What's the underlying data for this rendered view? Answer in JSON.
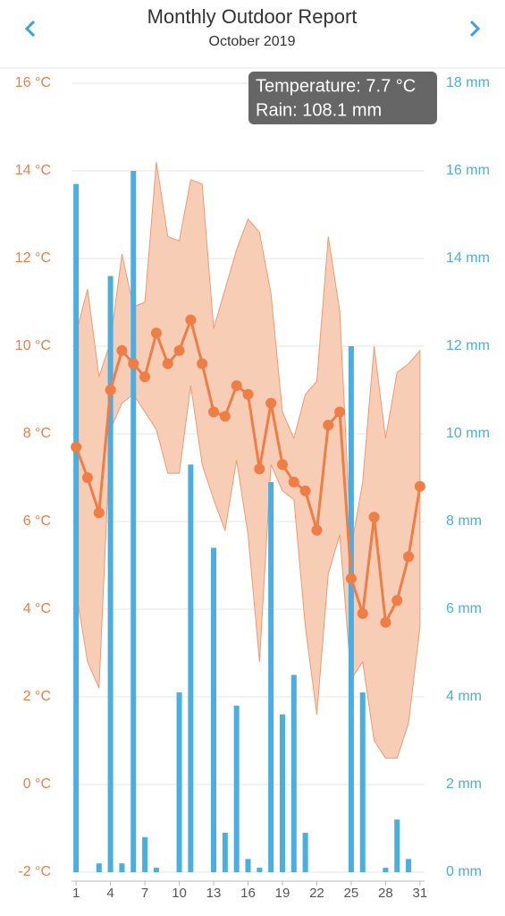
{
  "chart_data": {
    "type": "combo",
    "title": "Monthly Outdoor Report",
    "subtitle": "October 2019",
    "tooltip": [
      "Temperature: 7.7 °C",
      "Rain: 108.1 mm"
    ],
    "x": [
      1,
      2,
      3,
      4,
      5,
      6,
      7,
      8,
      9,
      10,
      11,
      12,
      13,
      14,
      15,
      16,
      17,
      18,
      19,
      20,
      21,
      22,
      23,
      24,
      25,
      26,
      27,
      28,
      29,
      30,
      31
    ],
    "xlim": [
      0.6,
      31.4
    ],
    "xticks": [
      1,
      4,
      7,
      10,
      13,
      16,
      19,
      22,
      25,
      28,
      31
    ],
    "ylim": [
      -2,
      16
    ],
    "yticks": [
      {
        "value": -2,
        "label": "-2 °C"
      },
      {
        "value": 0,
        "label": "0 °C"
      },
      {
        "value": 2,
        "label": "2 °C"
      },
      {
        "value": 4,
        "label": "4 °C"
      },
      {
        "value": 6,
        "label": "6 °C"
      },
      {
        "value": 8,
        "label": "8 °C"
      },
      {
        "value": 10,
        "label": "10 °C"
      },
      {
        "value": 12,
        "label": "12 °C"
      },
      {
        "value": 14,
        "label": "14 °C"
      },
      {
        "value": 16,
        "label": "16 °C"
      }
    ],
    "y2lim": [
      0,
      18
    ],
    "y2ticks": [
      {
        "value": 0,
        "label": "0 mm"
      },
      {
        "value": 2,
        "label": "2 mm"
      },
      {
        "value": 4,
        "label": "4 mm"
      },
      {
        "value": 6,
        "label": "6 mm"
      },
      {
        "value": 8,
        "label": "8 mm"
      },
      {
        "value": 10,
        "label": "10 mm"
      },
      {
        "value": 12,
        "label": "12 mm"
      },
      {
        "value": 14,
        "label": "14 mm"
      },
      {
        "value": 16,
        "label": "16 mm"
      },
      {
        "value": 18,
        "label": "18 mm"
      }
    ],
    "grid": true,
    "band": {
      "color": "#f7cdb6",
      "edge": "#ef9a72",
      "upper": [
        10.3,
        11.3,
        9.3,
        10.1,
        12.1,
        10.9,
        11.0,
        14.2,
        12.5,
        12.4,
        13.8,
        13.7,
        10.4,
        11.3,
        12.2,
        12.9,
        12.6,
        11.2,
        8.5,
        7.9,
        8.9,
        9.2,
        12.5,
        10.8,
        5.4,
        6.9,
        10.0,
        7.9,
        9.4,
        9.6,
        9.9
      ],
      "lower": [
        4.4,
        2.8,
        2.2,
        8.1,
        8.7,
        8.9,
        8.5,
        8.1,
        7.1,
        7.1,
        9.1,
        7.3,
        6.5,
        5.8,
        7.4,
        5.7,
        2.8,
        7.3,
        6.7,
        6.5,
        3.6,
        1.6,
        4.8,
        5.7,
        2.4,
        2.8,
        1.0,
        0.6,
        0.6,
        1.4,
        3.6
      ]
    },
    "series": [
      {
        "type": "bar",
        "axis": "y2",
        "color": "#4aaee0",
        "values": [
          15.7,
          0,
          0.2,
          13.6,
          0.2,
          16.0,
          0.8,
          0.1,
          0,
          4.1,
          9.3,
          0,
          7.4,
          0.9,
          3.8,
          0.3,
          0.1,
          8.9,
          3.6,
          4.5,
          0.9,
          0,
          0,
          0,
          12.0,
          4.1,
          0,
          0.1,
          1.2,
          0.3,
          0
        ]
      },
      {
        "type": "line",
        "color": "#ee7d46",
        "values": [
          7.7,
          7.0,
          6.2,
          9.0,
          9.9,
          9.6,
          9.3,
          10.3,
          9.6,
          9.9,
          10.6,
          9.6,
          8.5,
          8.4,
          9.1,
          8.9,
          7.2,
          8.7,
          7.3,
          6.9,
          6.7,
          5.8,
          8.2,
          8.5,
          4.7,
          3.9,
          6.1,
          3.7,
          4.2,
          5.2,
          6.8
        ]
      }
    ],
    "ytick_color": "#ee7d46",
    "y2tick_color": "#4aaee0"
  }
}
